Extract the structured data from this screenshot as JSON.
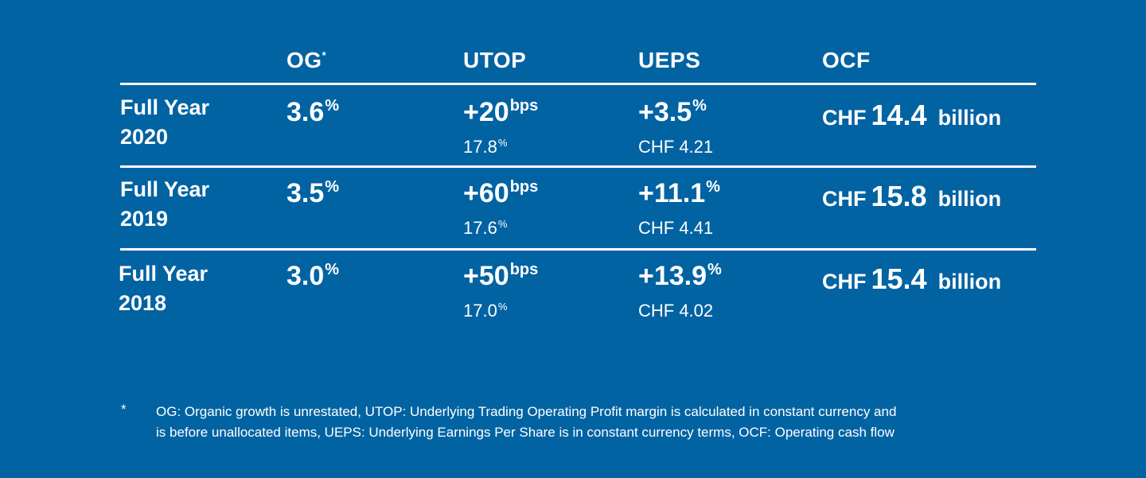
{
  "headers": {
    "og": "OG",
    "og_marker": "*",
    "utop": "UTOP",
    "ueps": "UEPS",
    "ocf": "OCF"
  },
  "rows": [
    {
      "label_line1": "Full Year",
      "label_line2": "2020",
      "og": "3.6",
      "og_unit": "%",
      "utop": "+20",
      "utop_unit": "bps",
      "utop_margin": "17.8",
      "utop_margin_unit": "%",
      "ueps": "+3.5",
      "ueps_unit": "%",
      "ueps_value": "CHF 4.21",
      "ocf_currency": "CHF",
      "ocf_value": "14.4",
      "ocf_unit": "billion"
    },
    {
      "label_line1": "Full Year",
      "label_line2": "2019",
      "og": "3.5",
      "og_unit": "%",
      "utop": "+60",
      "utop_unit": "bps",
      "utop_margin": "17.6",
      "utop_margin_unit": "%",
      "ueps": "+11.1",
      "ueps_unit": "%",
      "ueps_value": "CHF 4.41",
      "ocf_currency": "CHF",
      "ocf_value": "15.8",
      "ocf_unit": "billion"
    },
    {
      "label_line1": "Full Year",
      "label_line2": "2018",
      "og": "3.0",
      "og_unit": "%",
      "utop": "+50",
      "utop_unit": "bps",
      "utop_margin": "17.0",
      "utop_margin_unit": "%",
      "ueps": "+13.9",
      "ueps_unit": "%",
      "ueps_value": "CHF 4.02",
      "ocf_currency": "CHF",
      "ocf_value": "15.4",
      "ocf_unit": "billion"
    }
  ],
  "footnote": {
    "marker": "*",
    "line1": "OG: Organic growth is unrestated, UTOP: Underlying Trading Operating Profit margin is calculated in constant currency and",
    "line2": "is before unallocated items, UEPS: Underlying Earnings Per Share is in constant currency terms, OCF: Operating cash flow"
  },
  "colors": {
    "background": "#0263a3",
    "text": "#ffffff"
  }
}
